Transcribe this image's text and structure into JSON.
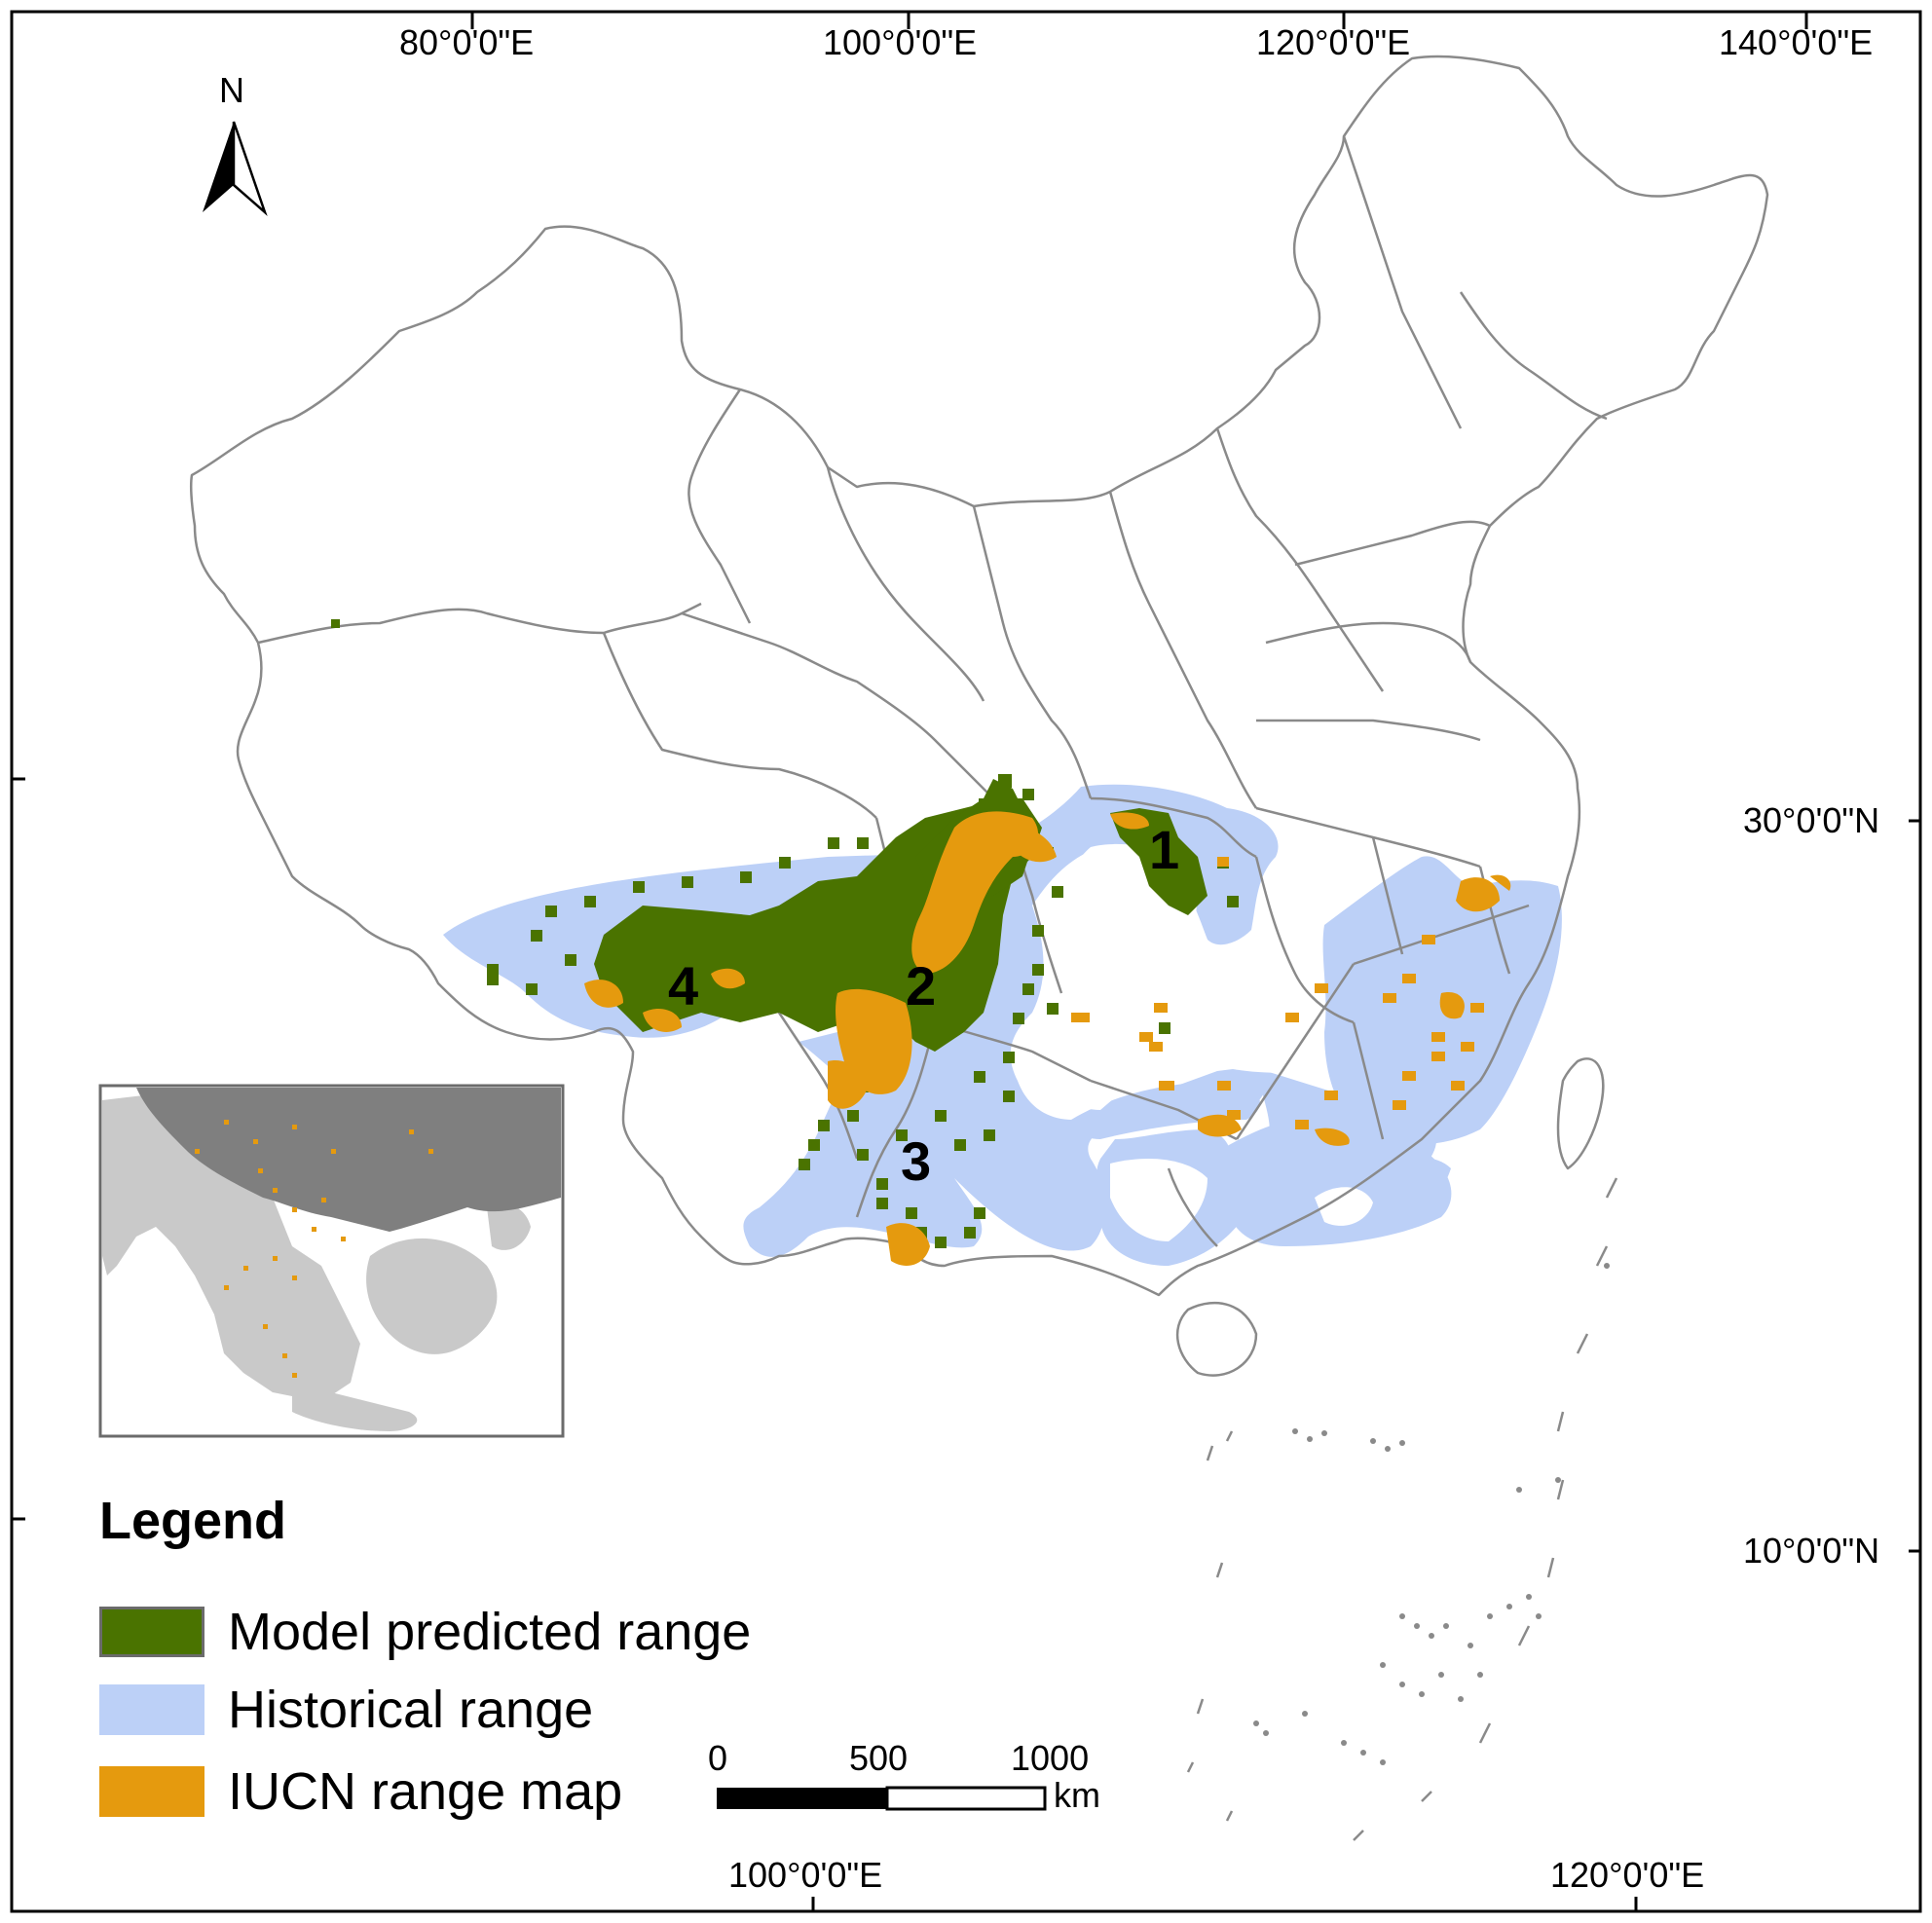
{
  "graticule": {
    "top_labels": [
      "80°0'0\"E",
      "100°0'0\"E",
      "120°0'0\"E",
      "140°0'0\"E"
    ],
    "bottom_labels": [
      "100°0'0\"E",
      "120°0'0\"E"
    ],
    "right_labels": [
      "30°0'0\"N",
      "10°0'0\"N"
    ]
  },
  "north_arrow": {
    "label": "N"
  },
  "region_labels": [
    "1",
    "2",
    "3",
    "4"
  ],
  "legend": {
    "title": "Legend",
    "items": [
      {
        "label": "Model predicted range",
        "color": "#4a7300",
        "border": "#6b6b6b",
        "icon": "model-predicted-swatch"
      },
      {
        "label": "Historical range",
        "color": "#bcd0f7",
        "border": "#bcd0f7",
        "icon": "historical-swatch"
      },
      {
        "label": "IUCN range map",
        "color": "#e59a0e",
        "border": "#e59a0e",
        "icon": "iucn-swatch"
      }
    ]
  },
  "scale_bar": {
    "ticks": [
      "0",
      "500",
      "1000"
    ],
    "unit": "km"
  },
  "colors": {
    "boundary": "#8a8a8a",
    "inset_land_dark": "#7f7f7f",
    "inset_land_light": "#c9c9c9"
  }
}
